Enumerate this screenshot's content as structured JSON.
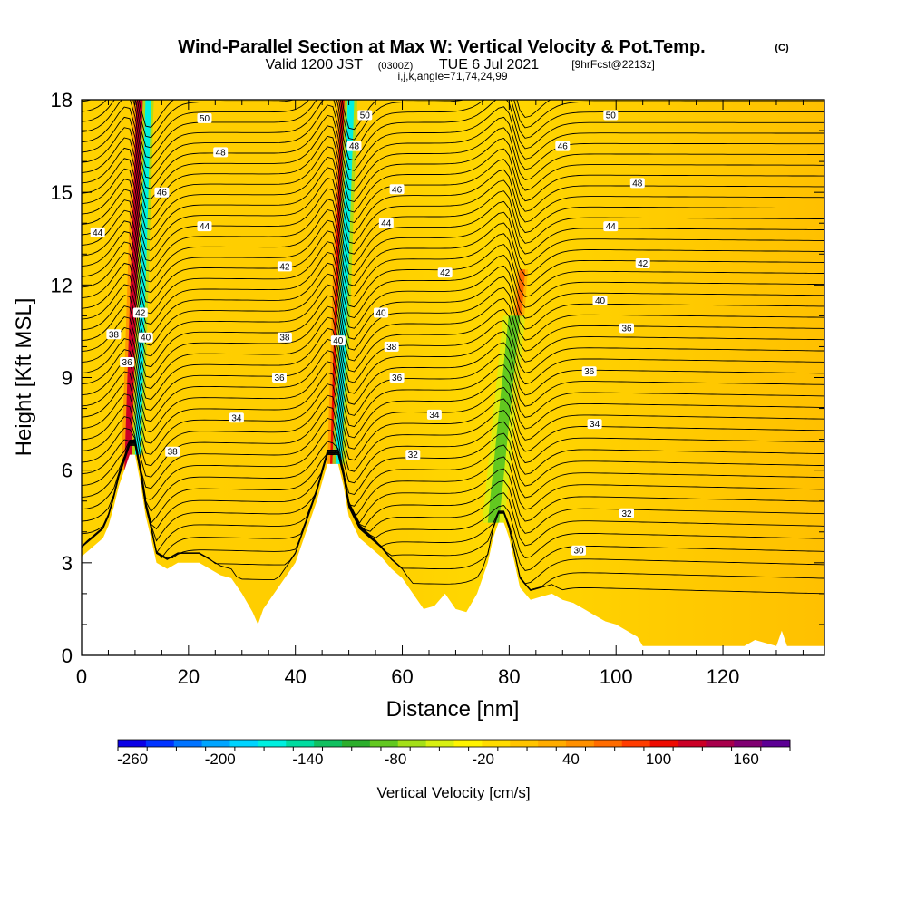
{
  "title": {
    "main": "Wind-Parallel Section at Max W: Vertical Velocity & Pot.Temp.",
    "mark": "(C)",
    "valid_prefix": "Valid 1200 JST",
    "valid_utc": "(0300Z)",
    "valid_date": "TUE 6 Jul 2021",
    "forecast": "[9hrFcst@2213z]",
    "indices": "i,j,k,angle=71,74,24,99"
  },
  "chart_data": {
    "type": "heatmap",
    "xlabel": "Distance [nm]",
    "ylabel": "Height [Kft MSL]",
    "xlim": [
      0,
      139
    ],
    "ylim": [
      0,
      18
    ],
    "x_ticks": [
      0,
      20,
      40,
      60,
      80,
      100,
      120
    ],
    "x_tick_labels": [
      "0",
      "20",
      "40",
      "60",
      "80",
      "100",
      "120"
    ],
    "y_ticks": [
      0,
      3,
      6,
      9,
      12,
      15,
      18
    ],
    "y_tick_labels": [
      "0",
      "3",
      "6",
      "9",
      "12",
      "15",
      "18"
    ],
    "grid": false,
    "terrain": {
      "x": [
        0,
        2,
        4,
        5,
        6,
        7,
        8,
        9,
        10,
        11,
        12,
        13,
        14,
        16,
        18,
        20,
        22,
        24,
        26,
        28,
        30,
        32,
        33,
        34,
        36,
        38,
        40,
        42,
        44,
        45,
        46,
        47,
        48,
        49,
        50,
        52,
        54,
        56,
        58,
        60,
        62,
        64,
        66,
        68,
        70,
        72,
        74,
        76,
        77,
        78,
        79,
        80,
        81,
        82,
        84,
        86,
        88,
        90,
        92,
        94,
        96,
        98,
        100,
        102,
        104,
        105,
        106,
        110,
        115,
        120,
        124,
        126,
        128,
        130,
        131,
        132,
        134,
        136,
        139
      ],
      "height": [
        3.2,
        3.5,
        3.8,
        4.2,
        4.8,
        5.5,
        6.0,
        6.5,
        6.5,
        5.6,
        4.5,
        3.8,
        3.0,
        2.8,
        3.0,
        3.0,
        3.0,
        2.8,
        2.6,
        2.5,
        2.0,
        1.4,
        1.0,
        1.5,
        2.0,
        2.5,
        3.0,
        4.0,
        5.0,
        5.6,
        6.2,
        6.2,
        6.2,
        5.5,
        4.5,
        3.8,
        3.5,
        3.2,
        2.8,
        2.5,
        2.0,
        1.5,
        1.6,
        2.0,
        1.5,
        1.4,
        2.0,
        3.0,
        3.8,
        4.3,
        4.3,
        3.8,
        3.0,
        2.2,
        1.8,
        1.9,
        2.0,
        1.8,
        1.7,
        1.5,
        1.3,
        1.1,
        1.0,
        0.8,
        0.6,
        0.3,
        0.3,
        0.3,
        0.3,
        0.3,
        0.3,
        0.5,
        0.4,
        0.3,
        0.8,
        0.3,
        0.3,
        0.3,
        0.3
      ]
    },
    "vertical_velocity_features": [
      {
        "name": "updraft",
        "x": [
          8.0,
          11.5
        ],
        "y": [
          6.0,
          18.0
        ],
        "value": 130
      },
      {
        "name": "downdraft",
        "x": [
          10.0,
          13.0
        ],
        "y": [
          6.5,
          18.0
        ],
        "value": -170
      },
      {
        "name": "updraft",
        "x": [
          46.5,
          49.5
        ],
        "y": [
          6.2,
          18.0
        ],
        "value": 120
      },
      {
        "name": "downdraft",
        "x": [
          47.5,
          51.0
        ],
        "y": [
          6.2,
          18.0
        ],
        "value": -160
      },
      {
        "name": "updraft",
        "x": [
          80.0,
          83.0
        ],
        "y": [
          8.0,
          12.5
        ],
        "value": 70
      },
      {
        "name": "downdraft",
        "x": [
          76.0,
          82.0
        ],
        "y": [
          4.3,
          11.0
        ],
        "value": -80
      }
    ],
    "isentropes": {
      "levels": [
        30,
        32,
        34,
        36,
        38,
        40,
        42,
        44,
        46,
        48,
        50
      ],
      "labels": [
        {
          "text": "50",
          "x": 23,
          "y": 17.4
        },
        {
          "text": "48",
          "x": 26,
          "y": 16.3
        },
        {
          "text": "46",
          "x": 15,
          "y": 15.0
        },
        {
          "text": "44",
          "x": 23,
          "y": 13.9
        },
        {
          "text": "44",
          "x": 3,
          "y": 13.7
        },
        {
          "text": "42",
          "x": 38,
          "y": 12.6
        },
        {
          "text": "42",
          "x": 11,
          "y": 11.1
        },
        {
          "text": "38",
          "x": 6,
          "y": 10.4
        },
        {
          "text": "40",
          "x": 12,
          "y": 10.3
        },
        {
          "text": "36",
          "x": 8.5,
          "y": 9.5
        },
        {
          "text": "38",
          "x": 38,
          "y": 10.3
        },
        {
          "text": "36",
          "x": 37,
          "y": 9.0
        },
        {
          "text": "34",
          "x": 29,
          "y": 7.7
        },
        {
          "text": "38",
          "x": 17,
          "y": 6.6
        },
        {
          "text": "50",
          "x": 53,
          "y": 17.5
        },
        {
          "text": "48",
          "x": 51,
          "y": 16.5
        },
        {
          "text": "46",
          "x": 59,
          "y": 15.1
        },
        {
          "text": "44",
          "x": 57,
          "y": 14.0
        },
        {
          "text": "42",
          "x": 68,
          "y": 12.4
        },
        {
          "text": "40",
          "x": 48,
          "y": 10.2
        },
        {
          "text": "40",
          "x": 56,
          "y": 11.1
        },
        {
          "text": "38",
          "x": 58,
          "y": 10.0
        },
        {
          "text": "36",
          "x": 59,
          "y": 9.0
        },
        {
          "text": "34",
          "x": 66,
          "y": 7.8
        },
        {
          "text": "32",
          "x": 62,
          "y": 6.5
        },
        {
          "text": "50",
          "x": 99,
          "y": 17.5
        },
        {
          "text": "46",
          "x": 90,
          "y": 16.5
        },
        {
          "text": "48",
          "x": 104,
          "y": 15.3
        },
        {
          "text": "44",
          "x": 99,
          "y": 13.9
        },
        {
          "text": "42",
          "x": 105,
          "y": 12.7
        },
        {
          "text": "40",
          "x": 97,
          "y": 11.5
        },
        {
          "text": "36",
          "x": 102,
          "y": 10.6
        },
        {
          "text": "36",
          "x": 95,
          "y": 9.2
        },
        {
          "text": "34",
          "x": 96,
          "y": 7.5
        },
        {
          "text": "32",
          "x": 102,
          "y": 4.6
        },
        {
          "text": "30",
          "x": 93,
          "y": 3.4
        }
      ]
    },
    "colorbar": {
      "label": "Vertical Velocity [cm/s]",
      "min": -270,
      "max": 190,
      "step": 20,
      "tick_values": [
        -260,
        -200,
        -140,
        -80,
        -20,
        40,
        100,
        160
      ],
      "tick_labels": [
        "-260",
        "-200",
        "-140",
        "-80",
        "-20",
        "40",
        "100",
        "160"
      ],
      "colors": [
        "#0a00e6",
        "#0033ff",
        "#0073ff",
        "#00a5ff",
        "#00d4ff",
        "#00f0e0",
        "#00dca0",
        "#10c060",
        "#2cae2c",
        "#62c820",
        "#a4e018",
        "#d8f010",
        "#fff400",
        "#ffdc00",
        "#ffc400",
        "#ffac00",
        "#ff9000",
        "#ff6c00",
        "#ff3c00",
        "#ee0a00",
        "#cc0026",
        "#a8004c",
        "#800072",
        "#5c0094"
      ]
    }
  }
}
